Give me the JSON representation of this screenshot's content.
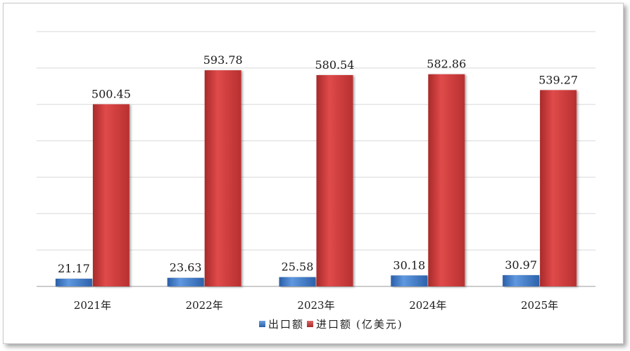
{
  "chart_data": {
    "type": "bar",
    "categories": [
      "2021年",
      "2022年",
      "2023年",
      "2024年",
      "2025年"
    ],
    "series": [
      {
        "name": "出口额",
        "values": [
          21.17,
          23.63,
          25.58,
          30.18,
          30.97
        ],
        "color": "#3a74c4"
      },
      {
        "name": "进口额",
        "values": [
          500.45,
          593.78,
          580.54,
          582.86,
          539.27
        ],
        "color": "#cc3b3b"
      }
    ],
    "unit": "(亿美元)",
    "ylim": [
      0,
      700
    ],
    "grid": true,
    "legend_position": "bottom"
  }
}
